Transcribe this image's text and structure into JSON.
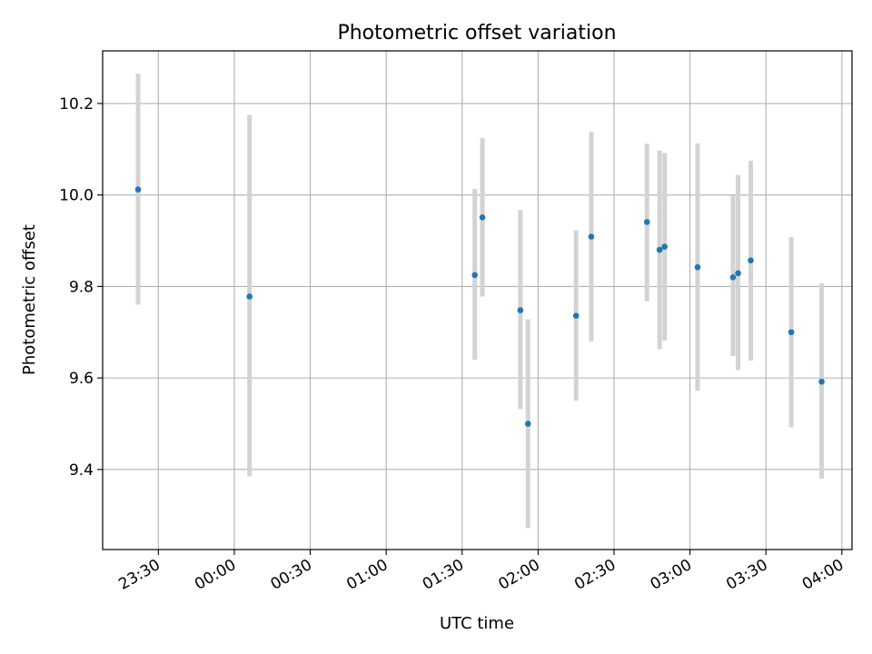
{
  "chart_data": {
    "type": "scatter",
    "title": "Photometric offset variation",
    "xlabel": "UTC time",
    "ylabel": "Photometric offset",
    "xlim": [
      "23:08",
      "04:04"
    ],
    "ylim": [
      9.225,
      10.315
    ],
    "grid": true,
    "x_ticks": [
      "23:30",
      "00:00",
      "00:30",
      "01:00",
      "01:30",
      "02:00",
      "02:30",
      "03:00",
      "03:30",
      "04:00"
    ],
    "y_ticks": [
      "9.4",
      "9.6",
      "9.8",
      "10.0",
      "10.2"
    ],
    "points": [
      {
        "time": "23:22",
        "value": 10.012,
        "low": 9.76,
        "high": 10.265
      },
      {
        "time": "00:06",
        "value": 9.778,
        "low": 9.385,
        "high": 10.175
      },
      {
        "time": "01:35",
        "value": 9.825,
        "low": 9.64,
        "high": 10.013
      },
      {
        "time": "01:38",
        "value": 9.951,
        "low": 9.778,
        "high": 10.125
      },
      {
        "time": "01:53",
        "value": 9.748,
        "low": 9.532,
        "high": 9.967
      },
      {
        "time": "01:56",
        "value": 9.5,
        "low": 9.272,
        "high": 9.728
      },
      {
        "time": "02:15",
        "value": 9.736,
        "low": 9.55,
        "high": 9.923
      },
      {
        "time": "02:21",
        "value": 9.909,
        "low": 9.68,
        "high": 10.138
      },
      {
        "time": "02:43",
        "value": 9.941,
        "low": 9.768,
        "high": 10.112
      },
      {
        "time": "02:48",
        "value": 9.88,
        "low": 9.663,
        "high": 10.097
      },
      {
        "time": "02:50",
        "value": 9.887,
        "low": 9.682,
        "high": 10.092
      },
      {
        "time": "03:03",
        "value": 9.842,
        "low": 9.572,
        "high": 10.113
      },
      {
        "time": "03:17",
        "value": 9.82,
        "low": 9.648,
        "high": 9.998
      },
      {
        "time": "03:19",
        "value": 9.829,
        "low": 9.617,
        "high": 10.044
      },
      {
        "time": "03:24",
        "value": 9.857,
        "low": 9.638,
        "high": 10.075
      },
      {
        "time": "03:40",
        "value": 9.7,
        "low": 9.492,
        "high": 9.908
      },
      {
        "time": "03:52",
        "value": 9.592,
        "low": 9.38,
        "high": 9.807
      }
    ],
    "colors": {
      "point": "#1f77b4",
      "errorbar": "#d3d3d3",
      "grid": "#b0b0b0",
      "axis": "#000000"
    }
  }
}
